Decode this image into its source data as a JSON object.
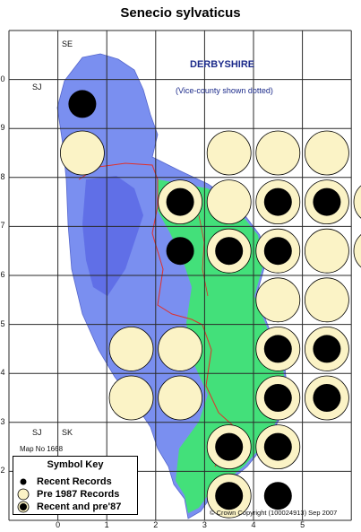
{
  "title": "Senecio sylvaticus",
  "county_label": "DERBYSHIRE",
  "vice_county_note": "(Vice-county shown dotted)",
  "map_number": "Map No 1668",
  "copyright": "© Crown Copyright (100024913) Sep 2007",
  "grid_refs": {
    "top_right": "SE",
    "top_left": "SJ",
    "bottom_left": "SJ",
    "bottom_right": "SK"
  },
  "axis": {
    "x_ticks": [
      "0",
      "1",
      "2",
      "3",
      "4",
      "5"
    ],
    "y_ticks": [
      "0",
      "9",
      "8",
      "7",
      "6",
      "5",
      "4",
      "3",
      "2"
    ]
  },
  "symbol_key": {
    "title": "Symbol Key",
    "items": [
      {
        "symbol": "recent",
        "label": "Recent Records"
      },
      {
        "symbol": "pre87",
        "label": "Pre 1987 Records"
      },
      {
        "symbol": "both",
        "label": "Recent and pre'87"
      }
    ]
  },
  "colors": {
    "pre87_fill": "#fbf3c6",
    "recent_fill": "#000000",
    "grid_line": "#2a2a2a",
    "county_blue": "#7a8ff0",
    "county_green": "#43e07a"
  },
  "records": [
    {
      "col": 1,
      "row": 1,
      "type": "recent"
    },
    {
      "col": 1,
      "row": 2,
      "type": "pre87"
    },
    {
      "col": 4,
      "row": 2,
      "type": "pre87"
    },
    {
      "col": 5,
      "row": 2,
      "type": "pre87"
    },
    {
      "col": 6,
      "row": 2,
      "type": "pre87"
    },
    {
      "col": 3,
      "row": 3,
      "type": "both"
    },
    {
      "col": 4,
      "row": 3,
      "type": "pre87"
    },
    {
      "col": 5,
      "row": 3,
      "type": "both"
    },
    {
      "col": 6,
      "row": 3,
      "type": "both"
    },
    {
      "col": 7,
      "row": 3,
      "type": "pre87"
    },
    {
      "col": 3,
      "row": 4,
      "type": "recent"
    },
    {
      "col": 4,
      "row": 4,
      "type": "both"
    },
    {
      "col": 5,
      "row": 4,
      "type": "both"
    },
    {
      "col": 6,
      "row": 4,
      "type": "pre87"
    },
    {
      "col": 7,
      "row": 4,
      "type": "pre87"
    },
    {
      "col": 5,
      "row": 5,
      "type": "pre87"
    },
    {
      "col": 6,
      "row": 5,
      "type": "pre87"
    },
    {
      "col": 2,
      "row": 6,
      "type": "pre87"
    },
    {
      "col": 3,
      "row": 6,
      "type": "pre87"
    },
    {
      "col": 5,
      "row": 6,
      "type": "both"
    },
    {
      "col": 6,
      "row": 6,
      "type": "both"
    },
    {
      "col": 2,
      "row": 7,
      "type": "pre87"
    },
    {
      "col": 3,
      "row": 7,
      "type": "pre87"
    },
    {
      "col": 5,
      "row": 7,
      "type": "both"
    },
    {
      "col": 6,
      "row": 7,
      "type": "both"
    },
    {
      "col": 4,
      "row": 8,
      "type": "both"
    },
    {
      "col": 5,
      "row": 8,
      "type": "both"
    },
    {
      "col": 4,
      "row": 9,
      "type": "both"
    },
    {
      "col": 5,
      "row": 9,
      "type": "recent"
    }
  ]
}
